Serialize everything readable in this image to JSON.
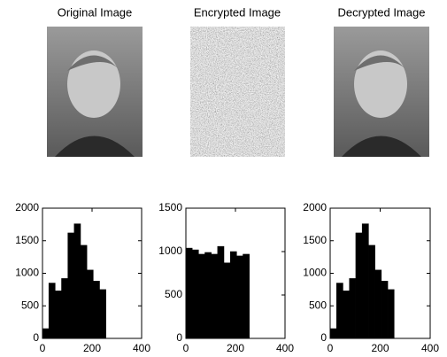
{
  "images": [
    {
      "title": "Original Image"
    },
    {
      "title": "Encrypted Image"
    },
    {
      "title": "Decrypted Image"
    }
  ],
  "chart_data": [
    {
      "type": "histogram",
      "bins": [
        0,
        25.6,
        51.2,
        76.8,
        102.4,
        128,
        153.6,
        179.2,
        204.8,
        230.4,
        256
      ],
      "values": [
        150,
        850,
        730,
        920,
        1620,
        1760,
        1430,
        1050,
        880,
        750
      ],
      "color": "#000000",
      "xlim": [
        0,
        400
      ],
      "xticks": [
        0,
        200,
        400
      ],
      "ylim": [
        0,
        2000
      ],
      "yticks": [
        0,
        500,
        1000,
        1500,
        2000
      ]
    },
    {
      "type": "histogram",
      "bins": [
        0,
        25.6,
        51.2,
        76.8,
        102.4,
        128,
        153.6,
        179.2,
        204.8,
        230.4,
        256
      ],
      "values": [
        1040,
        1020,
        970,
        990,
        970,
        1060,
        870,
        1000,
        950,
        970
      ],
      "color": "#000000",
      "xlim": [
        0,
        400
      ],
      "xticks": [
        0,
        200,
        400
      ],
      "ylim": [
        0,
        1500
      ],
      "yticks": [
        0,
        500,
        1000,
        1500
      ]
    },
    {
      "type": "histogram",
      "bins": [
        0,
        25.6,
        51.2,
        76.8,
        102.4,
        128,
        153.6,
        179.2,
        204.8,
        230.4,
        256
      ],
      "values": [
        150,
        850,
        730,
        920,
        1620,
        1760,
        1430,
        1050,
        880,
        750
      ],
      "color": "#000000",
      "xlim": [
        0,
        400
      ],
      "xticks": [
        0,
        200,
        400
      ],
      "ylim": [
        0,
        2000
      ],
      "yticks": [
        0,
        500,
        1000,
        1500,
        2000
      ]
    }
  ]
}
